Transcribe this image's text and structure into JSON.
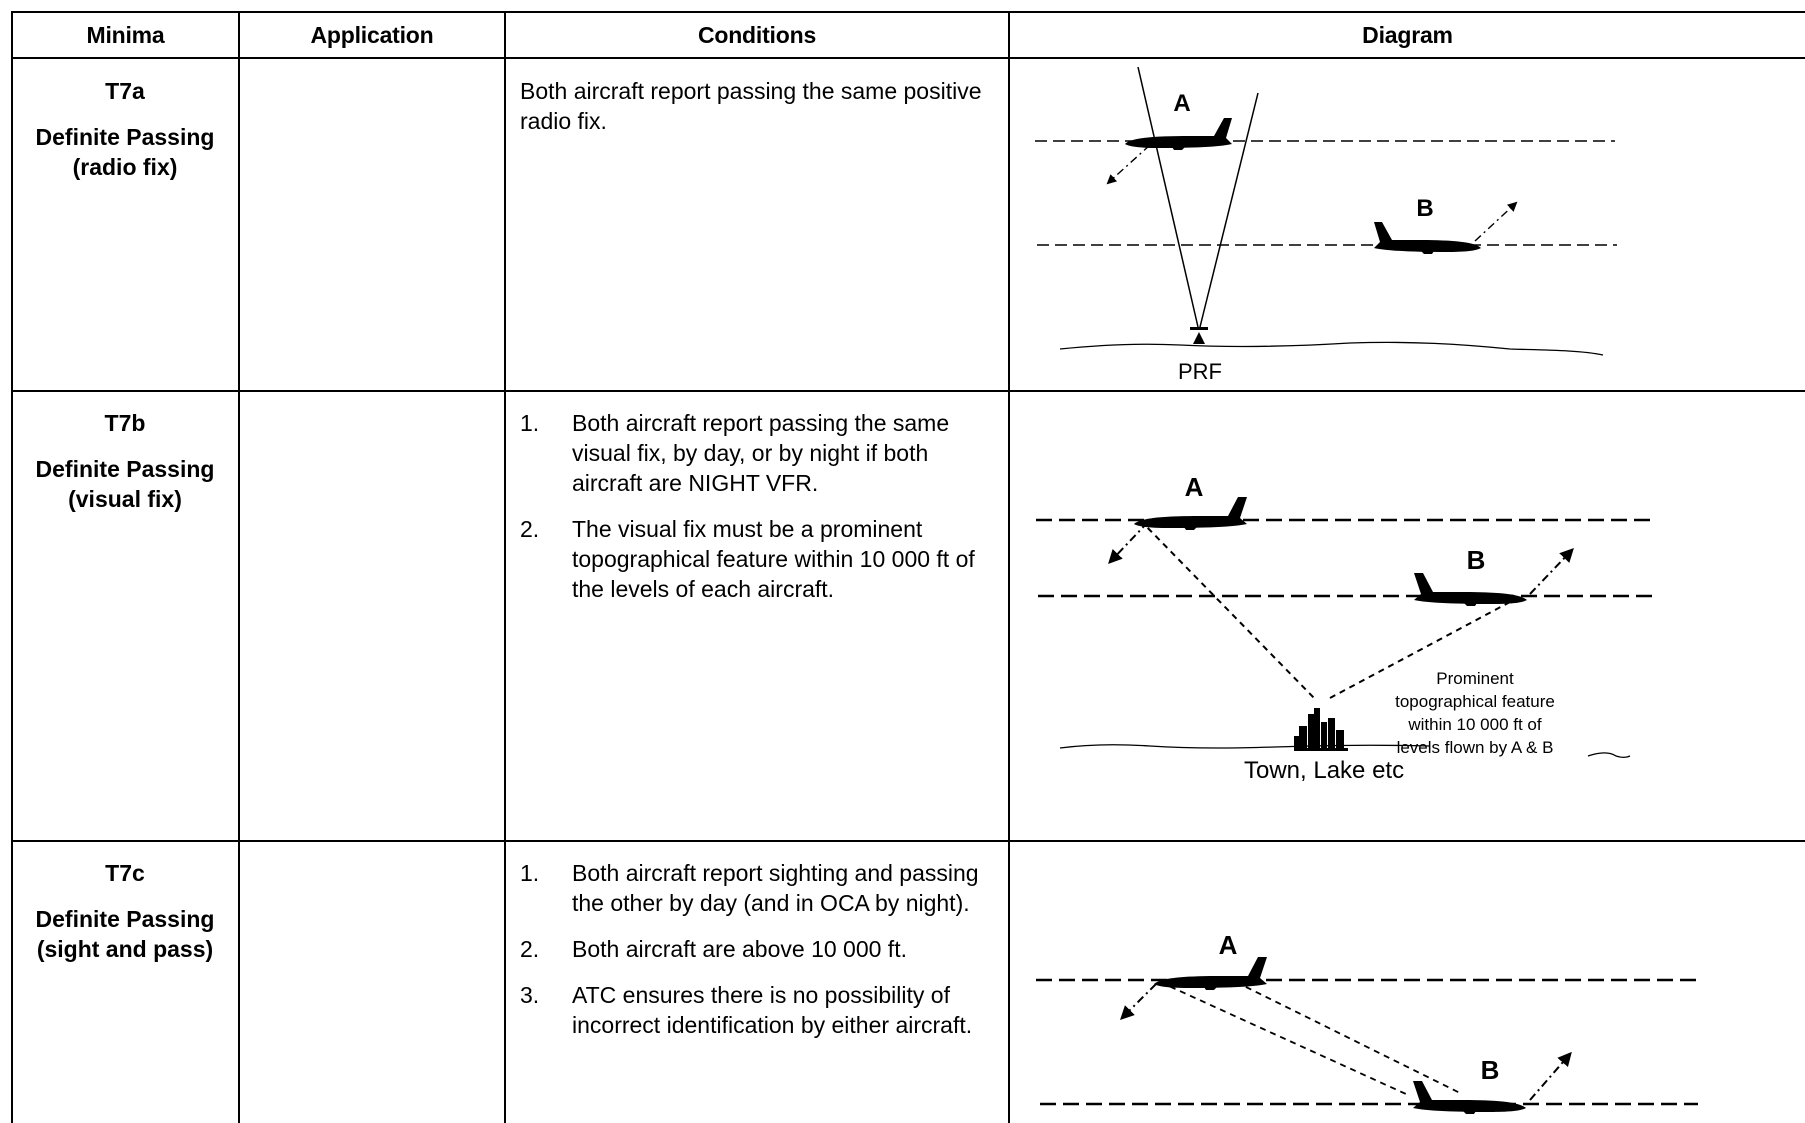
{
  "table": {
    "headers": {
      "minima": "Minima",
      "application": "Application",
      "conditions": "Conditions",
      "diagram": "Diagram"
    },
    "rows": [
      {
        "code": "T7a",
        "name": "Definite Passing",
        "qualifier": "(radio fix)",
        "application": "",
        "conditions": [
          "Both aircraft report passing the same positive radio fix."
        ],
        "diagram": {
          "aircraft_a": "A",
          "aircraft_b": "B",
          "ground_label": "PRF",
          "a_icon": "aircraft-icon",
          "b_icon": "aircraft-icon",
          "ground_icon": "radio-beacon-icon"
        }
      },
      {
        "code": "T7b",
        "name": "Definite Passing",
        "qualifier": "(visual fix)",
        "application": "",
        "conditions": [
          {
            "num": "1.",
            "text": "Both aircraft report passing the same visual fix, by day, or by night if both aircraft are NIGHT VFR."
          },
          {
            "num": "2.",
            "text": "The visual fix must be a prominent topographical feature within 10 000 ft of the levels of each aircraft."
          }
        ],
        "diagram": {
          "aircraft_a": "A",
          "aircraft_b": "B",
          "ground_label": "Town, Lake etc",
          "feature_note_lines": [
            "Prominent",
            "topographical feature",
            "within 10 000 ft of",
            "levels flown by A & B"
          ],
          "ground_icon": "town-skyline-icon"
        }
      },
      {
        "code": "T7c",
        "name": "Definite Passing",
        "qualifier": "(sight and pass)",
        "application": "",
        "conditions": [
          {
            "num": "1.",
            "text": "Both aircraft report sighting and passing the other by day (and in OCA by night)."
          },
          {
            "num": "2.",
            "text": "Both aircraft are above 10 000 ft."
          },
          {
            "num": "3.",
            "text": "ATC ensures there is no possibility of incorrect identification by either aircraft."
          }
        ],
        "diagram": {
          "aircraft_a": "A",
          "aircraft_b": "B"
        }
      }
    ]
  }
}
